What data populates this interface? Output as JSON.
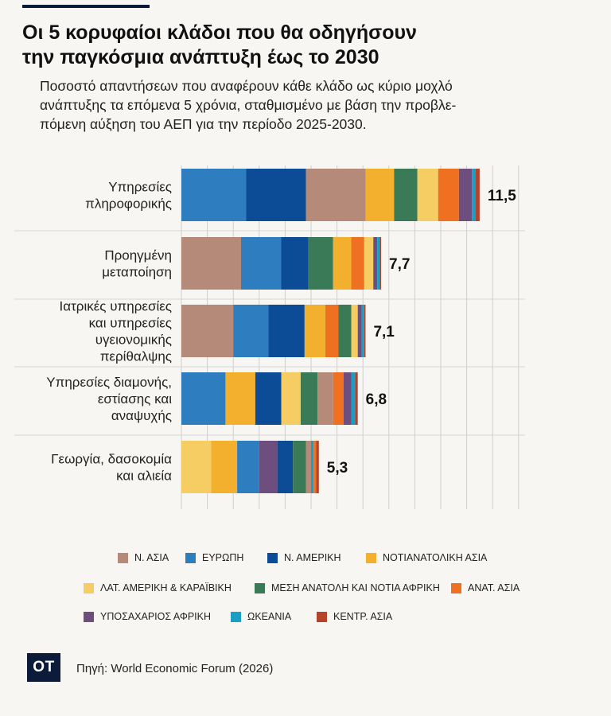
{
  "header": {
    "title": "Οι 5 κορυφαίοι κλάδοι που θα οδηγήσουν\nτην παγκόσμια ανάπτυξη έως το 2030",
    "subtitle": "Ποσοστό απαντήσεων που αναφέρουν κάθε κλάδο ως κύριο μοχλό\nανάπτυξης τα επόμενα 5 χρόνια, σταθμισμένο με βάση την προβλε-\nπόμενη αύξηση του ΑΕΠ για την περίοδο 2025-2030."
  },
  "footer": {
    "logo": "OT",
    "source": "Πηγή: World Economic Forum (2026)"
  },
  "chart_data": {
    "type": "bar",
    "orientation": "horizontal",
    "stacked": true,
    "xlim": [
      0,
      13
    ],
    "grid": true,
    "legend_position": "bottom",
    "categories": [
      [
        "Υπηρεσίες",
        "πληροφορικής"
      ],
      [
        "Προηγμένη",
        "μεταποίηση"
      ],
      [
        "Ιατρικές υπηρεσίες",
        "και υπηρεσίες",
        "υγειονομικής",
        "περίθαλψης"
      ],
      [
        "Υπηρεσίες διαμονής,",
        "εστίασης και",
        "αναψυχής"
      ],
      [
        "Γεωργία, δασοκομία",
        "και αλιεία"
      ]
    ],
    "totals": [
      11.5,
      7.7,
      7.1,
      6.8,
      5.3
    ],
    "total_labels": [
      "11,5",
      "7,7",
      "7,1",
      "6,8",
      "5,3"
    ],
    "segment_order": [
      [
        "ΕΥΡΩΠΗ",
        "Ν. ΑΜΕΡΙΚΗ",
        "Ν. ΑΣΙΑ",
        "ΝΟΤΙΑΝΑΤΟΛΙΚΗ ΑΣΙΑ",
        "ΜΕΣΗ ΑΝΑΤΟΛΗ ΚΑΙ ΝΟΤΙΑ ΑΦΡΙΚΗ",
        "ΛΑΤ. ΑΜΕΡΙΚΗ & ΚΑΡΑΪΒΙΚΗ",
        "ΑΝΑΤ. ΑΣΙΑ",
        "ΥΠΟΣΑΧΑΡΙΟΣ ΑΦΡΙΚΗ",
        "ΩΚΕΑΝΙΑ",
        "ΚΕΝΤΡ. ΑΣΙΑ"
      ],
      [
        "Ν. ΑΣΙΑ",
        "ΕΥΡΩΠΗ",
        "Ν. ΑΜΕΡΙΚΗ",
        "ΜΕΣΗ ΑΝΑΤΟΛΗ ΚΑΙ ΝΟΤΙΑ ΑΦΡΙΚΗ",
        "ΝΟΤΙΑΝΑΤΟΛΙΚΗ ΑΣΙΑ",
        "ΑΝΑΤ. ΑΣΙΑ",
        "ΛΑΤ. ΑΜΕΡΙΚΗ & ΚΑΡΑΪΒΙΚΗ",
        "ΥΠΟΣΑΧΑΡΙΟΣ ΑΦΡΙΚΗ",
        "ΩΚΕΑΝΙΑ",
        "ΚΕΝΤΡ. ΑΣΙΑ"
      ],
      [
        "Ν. ΑΣΙΑ",
        "ΕΥΡΩΠΗ",
        "Ν. ΑΜΕΡΙΚΗ",
        "ΝΟΤΙΑΝΑΤΟΛΙΚΗ ΑΣΙΑ",
        "ΑΝΑΤ. ΑΣΙΑ",
        "ΜΕΣΗ ΑΝΑΤΟΛΗ ΚΑΙ ΝΟΤΙΑ ΑΦΡΙΚΗ",
        "ΛΑΤ. ΑΜΕΡΙΚΗ & ΚΑΡΑΪΒΙΚΗ",
        "ΥΠΟΣΑΧΑΡΙΟΣ ΑΦΡΙΚΗ",
        "ΩΚΕΑΝΙΑ",
        "ΚΕΝΤΡ. ΑΣΙΑ"
      ],
      [
        "ΕΥΡΩΠΗ",
        "ΝΟΤΙΑΝΑΤΟΛΙΚΗ ΑΣΙΑ",
        "Ν. ΑΜΕΡΙΚΗ",
        "ΛΑΤ. ΑΜΕΡΙΚΗ & ΚΑΡΑΪΒΙΚΗ",
        "ΜΕΣΗ ΑΝΑΤΟΛΗ ΚΑΙ ΝΟΤΙΑ ΑΦΡΙΚΗ",
        "Ν. ΑΣΙΑ",
        "ΑΝΑΤ. ΑΣΙΑ",
        "ΥΠΟΣΑΧΑΡΙΟΣ ΑΦΡΙΚΗ",
        "ΩΚΕΑΝΙΑ",
        "ΚΕΝΤΡ. ΑΣΙΑ"
      ],
      [
        "ΛΑΤ. ΑΜΕΡΙΚΗ & ΚΑΡΑΪΒΙΚΗ",
        "ΝΟΤΙΑΝΑΤΟΛΙΚΗ ΑΣΙΑ",
        "ΕΥΡΩΠΗ",
        "ΥΠΟΣΑΧΑΡΙΟΣ ΑΦΡΙΚΗ",
        "Ν. ΑΜΕΡΙΚΗ",
        "ΜΕΣΗ ΑΝΑΤΟΛΗ ΚΑΙ ΝΟΤΙΑ ΑΦΡΙΚΗ",
        "Ν. ΑΣΙΑ",
        "ΩΚΕΑΝΙΑ",
        "ΑΝΑΤ. ΑΣΙΑ",
        "ΚΕΝΤΡ. ΑΣΙΑ"
      ]
    ],
    "segment_values": [
      [
        2.5,
        2.3,
        2.3,
        1.1,
        0.9,
        0.8,
        0.8,
        0.5,
        0.15,
        0.15
      ],
      [
        2.3,
        1.55,
        1.05,
        0.95,
        0.7,
        0.5,
        0.35,
        0.15,
        0.1,
        0.05
      ],
      [
        2.0,
        1.35,
        1.4,
        0.8,
        0.5,
        0.5,
        0.25,
        0.15,
        0.1,
        0.05
      ],
      [
        1.7,
        1.15,
        1.0,
        0.75,
        0.65,
        0.6,
        0.4,
        0.3,
        0.15,
        0.1
      ],
      [
        1.15,
        1.0,
        0.85,
        0.7,
        0.6,
        0.5,
        0.2,
        0.1,
        0.1,
        0.1
      ]
    ],
    "series": [
      {
        "name": "Ν. ΑΣΙΑ",
        "color": "#b68a78"
      },
      {
        "name": "ΕΥΡΩΠΗ",
        "color": "#2e7ebf"
      },
      {
        "name": "Ν. ΑΜΕΡΙΚΗ",
        "color": "#0c4b95"
      },
      {
        "name": "ΝΟΤΙΑΝΑΤΟΛΙΚΗ ΑΣΙΑ",
        "color": "#f3b02f"
      },
      {
        "name": "ΛΑΤ. ΑΜΕΡΙΚΗ & ΚΑΡΑΪΒΙΚΗ",
        "color": "#f6cd62"
      },
      {
        "name": "ΜΕΣΗ ΑΝΑΤΟΛΗ ΚΑΙ ΝΟΤΙΑ ΑΦΡΙΚΗ",
        "color": "#3b7a57"
      },
      {
        "name": "ΑΝΑΤ. ΑΣΙΑ",
        "color": "#f07022"
      },
      {
        "name": "ΥΠΟΣΑΧΑΡΙΟΣ ΑΦΡΙΚΗ",
        "color": "#6d4e7e"
      },
      {
        "name": "ΩΚΕΑΝΙΑ",
        "color": "#1a9fc4"
      },
      {
        "name": "ΚΕΝΤΡ. ΑΣΙΑ",
        "color": "#b5432a"
      }
    ]
  }
}
